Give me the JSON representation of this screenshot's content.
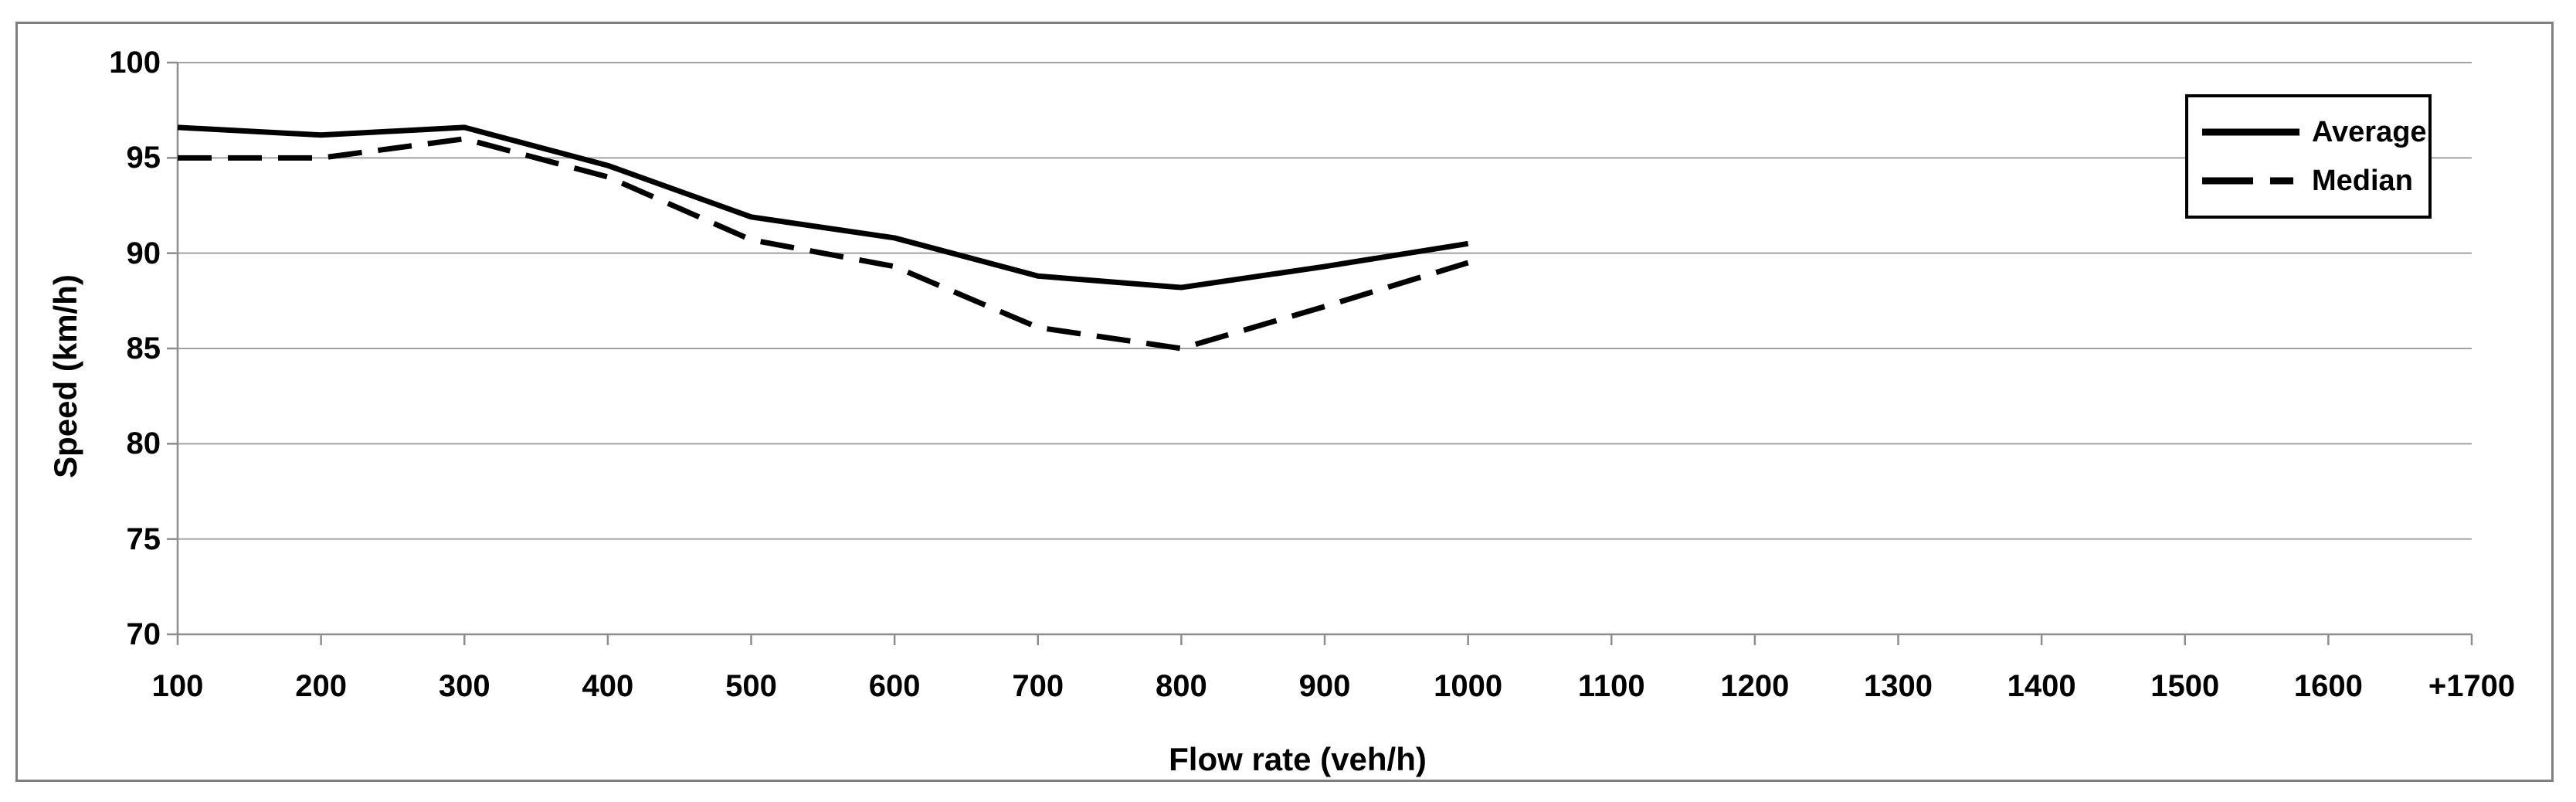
{
  "chart_data": {
    "type": "line",
    "title": "",
    "xlabel": "Flow rate (veh/h)",
    "ylabel": "Speed (km/h)",
    "x_categories": [
      "100",
      "200",
      "300",
      "400",
      "500",
      "600",
      "700",
      "800",
      "900",
      "1000",
      "1100",
      "1200",
      "1300",
      "1400",
      "1500",
      "1600",
      "+1700"
    ],
    "y_ticks": [
      "100",
      "95",
      "90",
      "85",
      "80",
      "75",
      "70"
    ],
    "ylim": [
      70,
      100
    ],
    "grid": "horizontal-major",
    "legend_position": "top-right",
    "series": [
      {
        "name": "Average",
        "style": "solid",
        "x": [
          100,
          200,
          300,
          400,
          500,
          600,
          700,
          800,
          900,
          1000
        ],
        "values": [
          96.6,
          96.2,
          96.6,
          94.6,
          91.9,
          90.8,
          88.8,
          88.2,
          89.3,
          90.5
        ]
      },
      {
        "name": "Median",
        "style": "dashed",
        "x": [
          100,
          200,
          300,
          400,
          500,
          600,
          700,
          800,
          900,
          1000
        ],
        "values": [
          95.0,
          95.0,
          96.0,
          94.0,
          90.7,
          89.3,
          86.1,
          85.0,
          87.2,
          89.5
        ]
      }
    ],
    "colors": {
      "series_line": "#000000",
      "gridline": "#A1A1A1",
      "axis_line": "#8D8D8D",
      "chart_border": "#7F7F7F",
      "legend_border": "#000000",
      "background": "#FFFFFF",
      "text": "#000000"
    }
  }
}
